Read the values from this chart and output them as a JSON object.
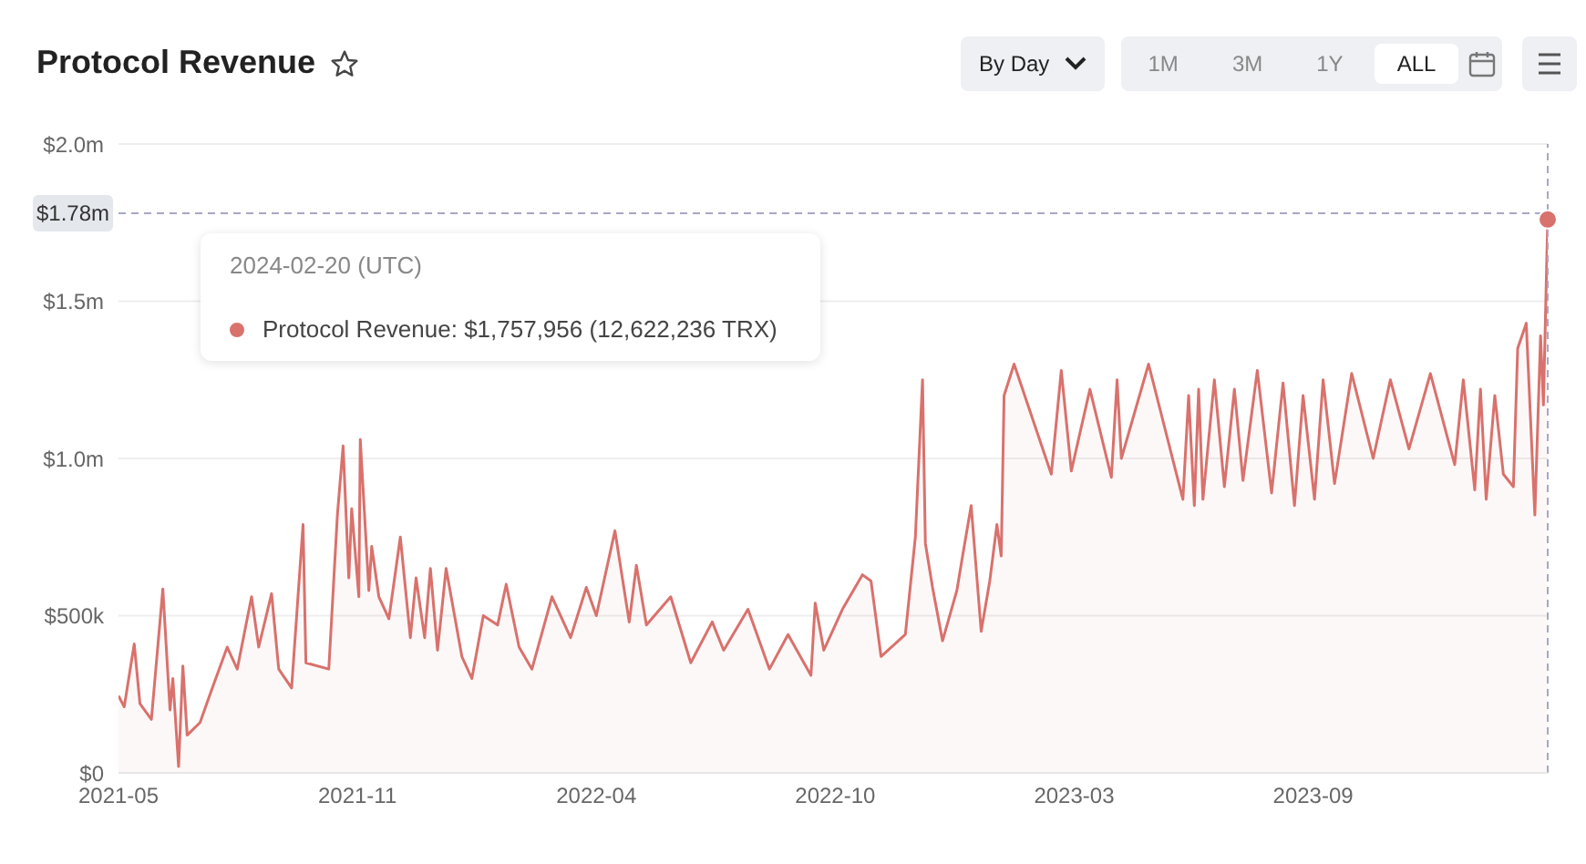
{
  "chart_data": {
    "type": "area",
    "title": "Protocol Revenue",
    "x": [
      "2021-05-27",
      "2021-05-31",
      "2021-06-07",
      "2021-06-11",
      "2021-06-19",
      "2021-06-27",
      "2021-07-02",
      "2021-07-04",
      "2021-07-08",
      "2021-07-11",
      "2021-07-14",
      "2021-07-23",
      "2021-07-30",
      "2021-08-11",
      "2021-08-18",
      "2021-08-28",
      "2021-09-02",
      "2021-09-11",
      "2021-09-16",
      "2021-09-25",
      "2021-10-03",
      "2021-10-05",
      "2021-10-21",
      "2021-10-27",
      "2021-10-31",
      "2021-11-04",
      "2021-11-06",
      "2021-11-11",
      "2021-11-12",
      "2021-11-18",
      "2021-11-20",
      "2021-11-25",
      "2021-12-02",
      "2021-12-10",
      "2021-12-17",
      "2021-12-21",
      "2021-12-27",
      "2021-12-31",
      "2022-01-05",
      "2022-01-11",
      "2022-01-22",
      "2022-01-29",
      "2022-02-06",
      "2022-02-16",
      "2022-02-22",
      "2022-03-03",
      "2022-03-12",
      "2022-03-26",
      "2022-04-08",
      "2022-04-19",
      "2022-04-26",
      "2022-05-09",
      "2022-05-19",
      "2022-05-24",
      "2022-05-31",
      "2022-06-17",
      "2022-07-01",
      "2022-07-16",
      "2022-07-24",
      "2022-08-10",
      "2022-08-25",
      "2022-09-07",
      "2022-09-23",
      "2022-09-26",
      "2022-10-02",
      "2022-10-15",
      "2022-10-29",
      "2022-11-04",
      "2022-11-11",
      "2022-11-28",
      "2022-12-05",
      "2022-12-10",
      "2022-12-12",
      "2022-12-17",
      "2022-12-24",
      "2023-01-03",
      "2023-01-07",
      "2023-01-13",
      "2023-01-20",
      "2023-01-26",
      "2023-01-31",
      "2023-02-03",
      "2023-02-05",
      "2023-02-12",
      "2023-03-10",
      "2023-03-17",
      "2023-03-24",
      "2023-04-06",
      "2023-04-21",
      "2023-04-25",
      "2023-04-28",
      "2023-05-17",
      "2023-06-10",
      "2023-06-14",
      "2023-06-18",
      "2023-06-21",
      "2023-06-24",
      "2023-07-02",
      "2023-07-09",
      "2023-07-16",
      "2023-07-22",
      "2023-08-01",
      "2023-08-11",
      "2023-08-19",
      "2023-08-27",
      "2023-09-02",
      "2023-09-10",
      "2023-09-16",
      "2023-09-24",
      "2023-10-06",
      "2023-10-21",
      "2023-11-02",
      "2023-11-15",
      "2023-11-30",
      "2023-12-17",
      "2023-12-23",
      "2023-12-31",
      "2024-01-04",
      "2024-01-08",
      "2024-01-14",
      "2024-01-20",
      "2024-01-27",
      "2024-01-30",
      "2024-02-05",
      "2024-02-11",
      "2024-02-15",
      "2024-02-17",
      "2024-02-20"
    ],
    "series": [
      {
        "color": "#d9716c",
        "values": [
          245000,
          210000,
          410000,
          220000,
          170000,
          585000,
          200000,
          300000,
          20000,
          340000,
          120000,
          160000,
          250000,
          400000,
          330000,
          560000,
          400000,
          570000,
          330000,
          270000,
          790000,
          350000,
          330000,
          820000,
          1040000,
          620000,
          840000,
          560000,
          1060000,
          580000,
          720000,
          560000,
          490000,
          750000,
          430000,
          620000,
          430000,
          650000,
          390000,
          650000,
          370000,
          300000,
          500000,
          470000,
          600000,
          400000,
          330000,
          560000,
          430000,
          590000,
          500000,
          770000,
          480000,
          660000,
          470000,
          560000,
          350000,
          480000,
          390000,
          520000,
          330000,
          440000,
          310000,
          540000,
          390000,
          520000,
          630000,
          610000,
          370000,
          440000,
          750000,
          1250000,
          730000,
          590000,
          420000,
          580000,
          690000,
          850000,
          450000,
          610000,
          790000,
          690000,
          1200000,
          1300000,
          950000,
          1280000,
          960000,
          1220000,
          940000,
          1250000,
          1000000,
          1300000,
          870000,
          1200000,
          850000,
          1220000,
          870000,
          1250000,
          910000,
          1220000,
          930000,
          1280000,
          890000,
          1240000,
          850000,
          1200000,
          870000,
          1250000,
          920000,
          1270000,
          1000000,
          1250000,
          1030000,
          1270000,
          980000,
          1250000,
          900000,
          1220000,
          870000,
          1200000,
          950000,
          910000,
          1350000,
          1430000,
          820000,
          1390000,
          1170000,
          1760000
        ]
      }
    ],
    "xlim": [
      "2021-05-27",
      "2024-02-20"
    ],
    "xticks": [
      {
        "value": "2021-05-27",
        "label": "2021-05"
      },
      {
        "value": "2021-11-10",
        "label": "2021-11"
      },
      {
        "value": "2022-04-26",
        "label": "2022-04"
      },
      {
        "value": "2022-10-10",
        "label": "2022-10"
      },
      {
        "value": "2023-03-26",
        "label": "2023-03"
      },
      {
        "value": "2023-09-09",
        "label": "2023-09"
      }
    ],
    "ylim": [
      0,
      2000000
    ],
    "yticks": [
      {
        "value": 0,
        "label": "$0"
      },
      {
        "value": 500000,
        "label": "$500k"
      },
      {
        "value": 1000000,
        "label": "$1.0m"
      },
      {
        "value": 1500000,
        "label": "$1.5m"
      },
      {
        "value": 2000000,
        "label": "$2.0m"
      }
    ],
    "grid": "y",
    "marker": "none",
    "line_style": "solid",
    "ref_lines": [
      {
        "axis": "y",
        "value": 1780000,
        "label": "$1.78m",
        "color": "#a9a6c4",
        "line_style": "dashed"
      },
      {
        "axis": "x",
        "value": "2024-02-20",
        "label": null,
        "color": "#a9a6c4",
        "line_style": "dashed"
      }
    ],
    "annotations": [
      "2024-02-20 (UTC)",
      "Protocol Revenue: $1,757,956 (12,622,236 TRX)",
      "By Day",
      "1M",
      "3M",
      "1Y",
      "ALL"
    ]
  }
}
